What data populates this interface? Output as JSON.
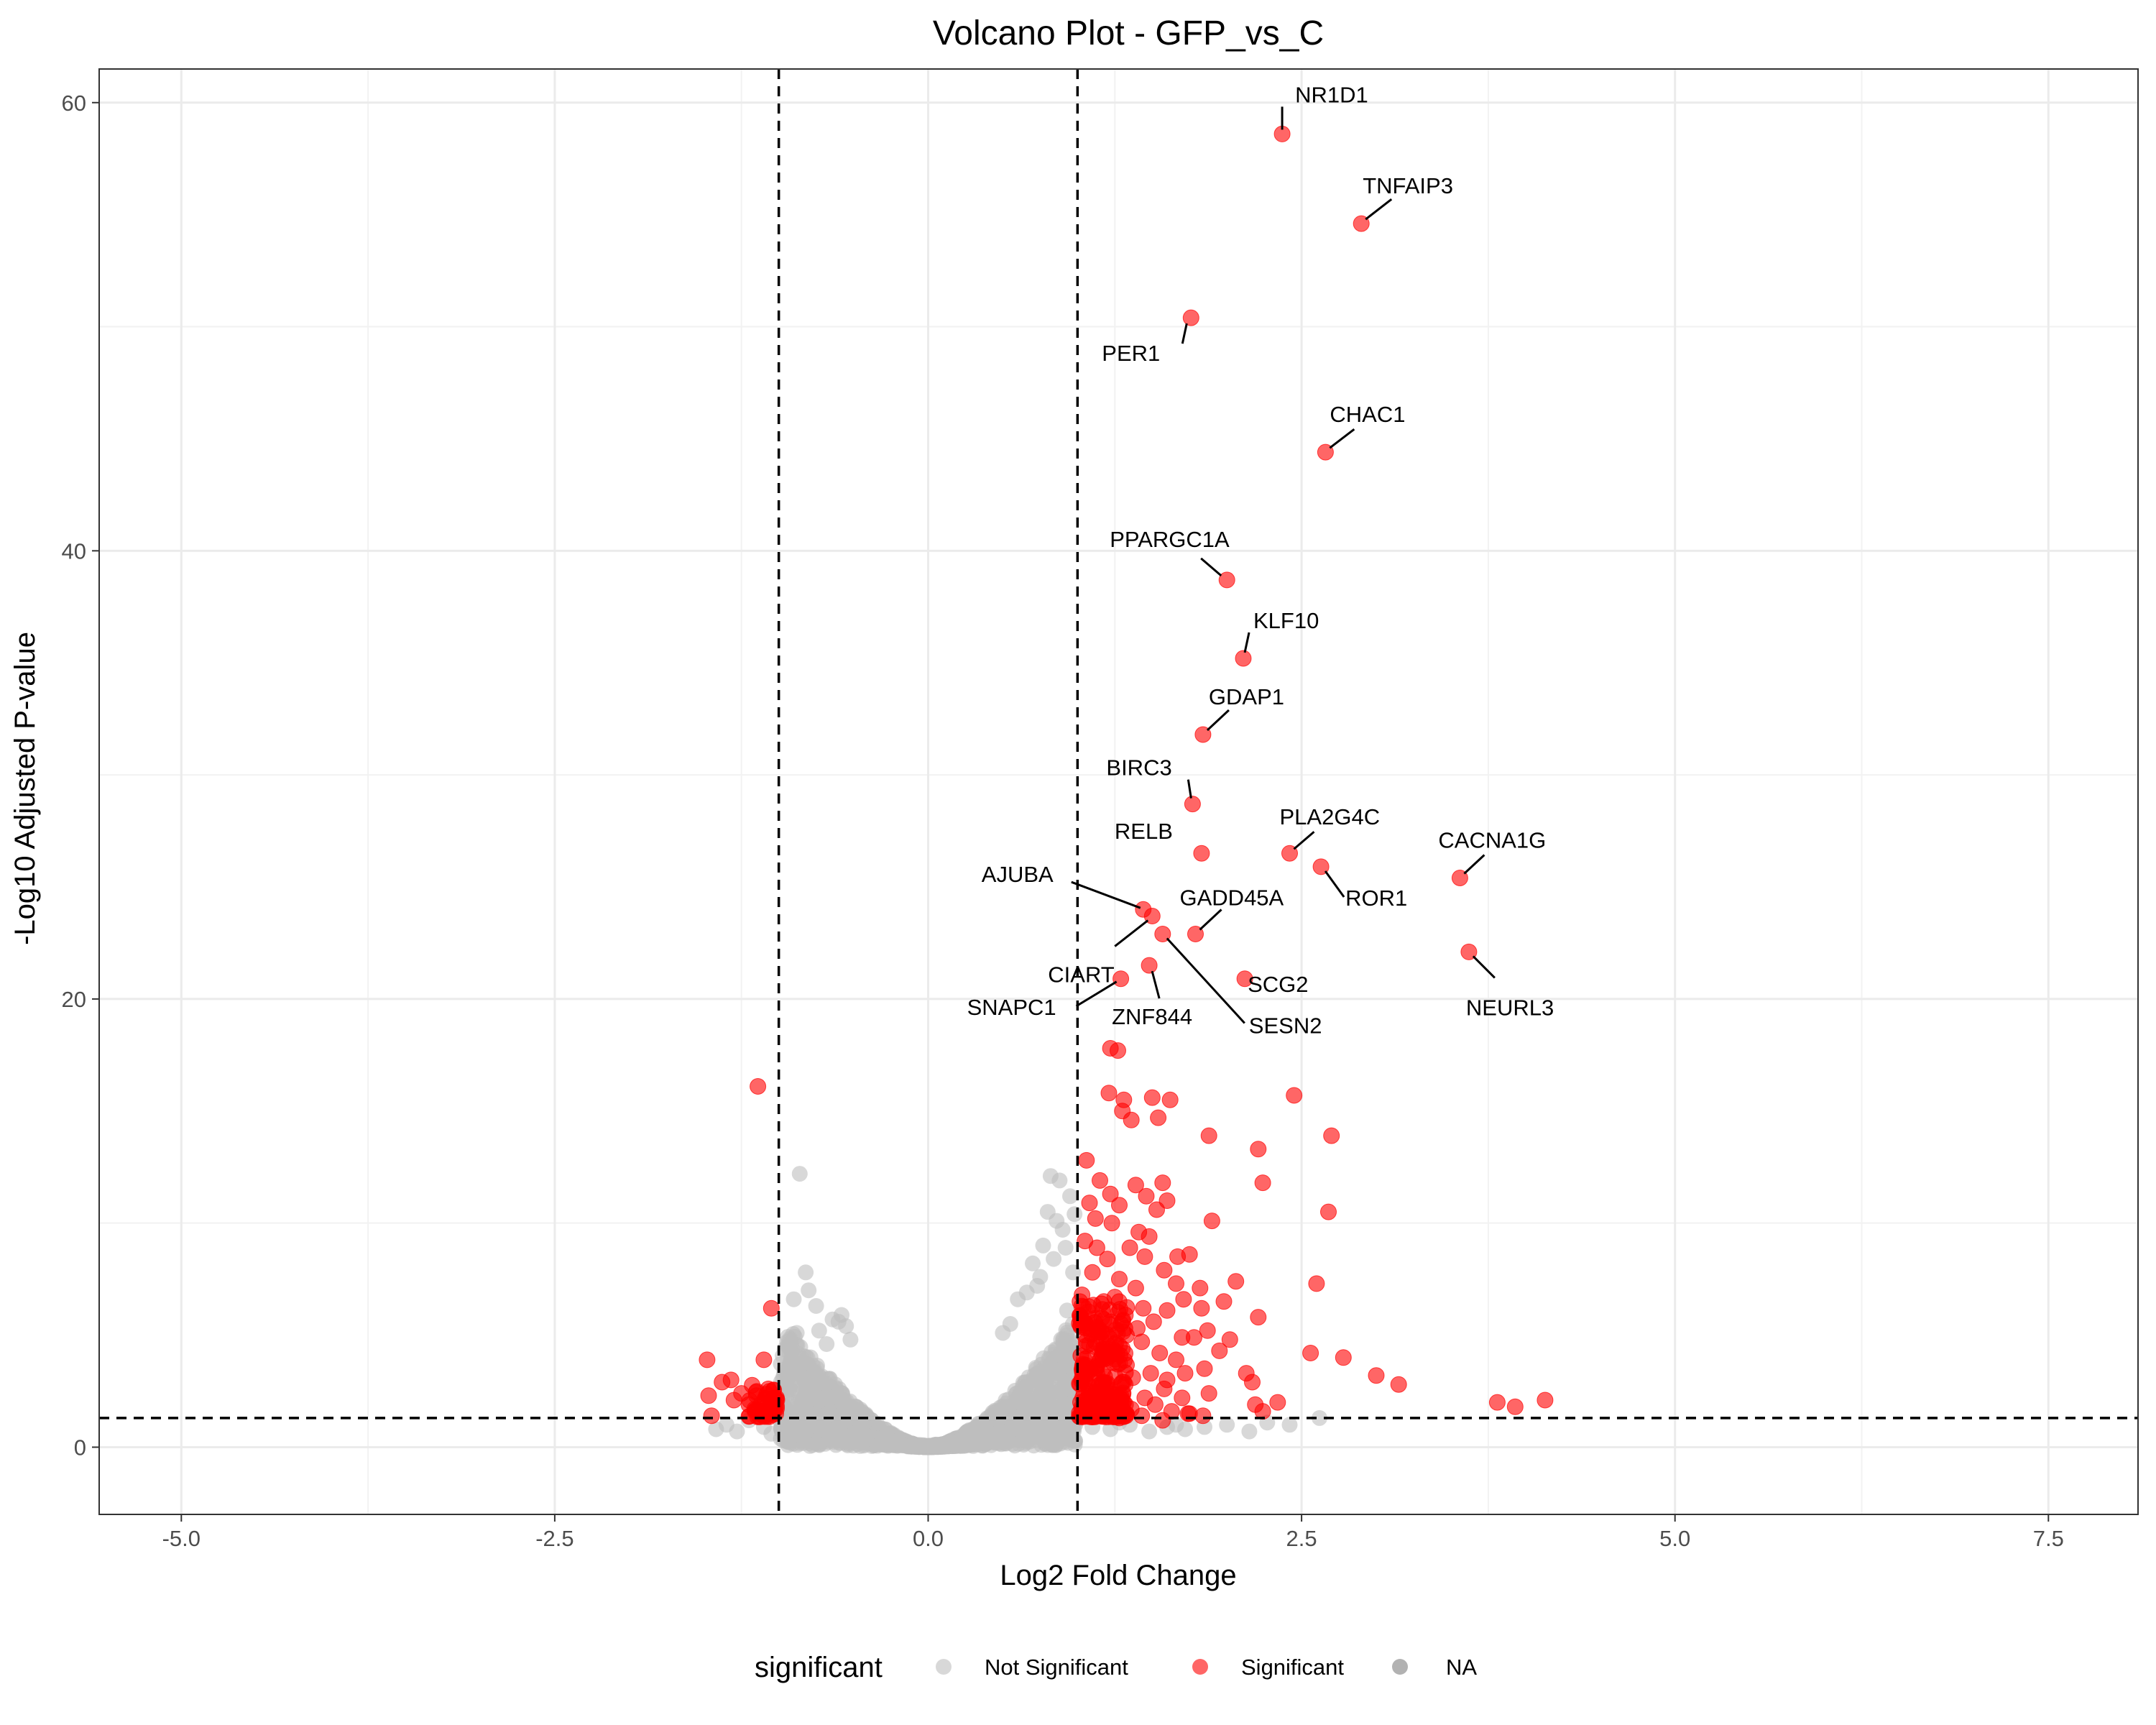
{
  "chart_data": {
    "type": "scatter",
    "title": "Volcano Plot - GFP_vs_C",
    "xlabel": "Log2 Fold Change",
    "ylabel": "-Log10 Adjusted P-value",
    "xlim": [
      -5.55,
      8.1
    ],
    "ylim": [
      -3,
      61.5
    ],
    "x_ticks": [
      -5.0,
      -2.5,
      0.0,
      2.5,
      5.0,
      7.5
    ],
    "x_tick_labels": [
      "-5.0",
      "-2.5",
      "0.0",
      "2.5",
      "5.0",
      "7.5"
    ],
    "y_ticks": [
      0,
      20,
      40,
      60
    ],
    "y_tick_labels": [
      "0",
      "20",
      "40",
      "60"
    ],
    "grid": true,
    "thresholds": {
      "log2fc": [
        -1,
        1
      ],
      "neg_log10_padj": 1.3
    },
    "legend": {
      "title": "significant",
      "position": "bottom",
      "entries": [
        {
          "label": "Not Significant",
          "color": "#bebebe"
        },
        {
          "label": "Significant",
          "color": "#ff0000"
        },
        {
          "label": "NA",
          "color": "#7f7f7f"
        }
      ]
    },
    "colors": {
      "not_significant": "#bebebe",
      "significant": "#ff0000",
      "na": "#7f7f7f"
    },
    "labeled_points": [
      {
        "gene": "NR1D1",
        "x": 2.37,
        "y": 58.6
      },
      {
        "gene": "TNFAIP3",
        "x": 2.9,
        "y": 54.6
      },
      {
        "gene": "PER1",
        "x": 1.76,
        "y": 50.4
      },
      {
        "gene": "CHAC1",
        "x": 2.66,
        "y": 44.4
      },
      {
        "gene": "PPARGC1A",
        "x": 2.0,
        "y": 38.7
      },
      {
        "gene": "KLF10",
        "x": 2.11,
        "y": 35.2
      },
      {
        "gene": "GDAP1",
        "x": 1.84,
        "y": 31.8
      },
      {
        "gene": "BIRC3",
        "x": 1.77,
        "y": 28.7
      },
      {
        "gene": "RELB",
        "x": 1.83,
        "y": 26.5
      },
      {
        "gene": "PLA2G4C",
        "x": 2.42,
        "y": 26.5
      },
      {
        "gene": "CACNA1G",
        "x": 3.56,
        "y": 25.4
      },
      {
        "gene": "ROR1",
        "x": 2.63,
        "y": 25.9
      },
      {
        "gene": "AJUBA",
        "x": 1.44,
        "y": 24.0
      },
      {
        "gene": "CIART",
        "x": 1.5,
        "y": 23.7
      },
      {
        "gene": "GADD45A",
        "x": 1.79,
        "y": 22.9
      },
      {
        "gene": "SESN2",
        "x": 1.57,
        "y": 22.9
      },
      {
        "gene": "SCG2",
        "x": 2.12,
        "y": 20.9
      },
      {
        "gene": "SNAPC1",
        "x": 1.29,
        "y": 20.9
      },
      {
        "gene": "ZNF844",
        "x": 1.48,
        "y": 21.5
      },
      {
        "gene": "NEURL3",
        "x": 3.62,
        "y": 22.1
      }
    ],
    "other_significant_points": [
      [
        -1.14,
        16.1
      ],
      [
        -1.48,
        3.9
      ],
      [
        -1.47,
        2.3
      ],
      [
        -1.45,
        1.4
      ],
      [
        -1.38,
        2.9
      ],
      [
        -1.32,
        3.0
      ],
      [
        -1.3,
        2.1
      ],
      [
        -1.25,
        2.4
      ],
      [
        -1.2,
        1.9
      ],
      [
        -1.16,
        1.6
      ],
      [
        -1.12,
        1.9
      ],
      [
        -1.1,
        3.9
      ],
      [
        -1.07,
        2.6
      ],
      [
        -1.05,
        6.2
      ],
      [
        -1.03,
        2.2
      ],
      [
        -1.02,
        1.5
      ],
      [
        1.22,
        17.8
      ],
      [
        1.27,
        17.7
      ],
      [
        1.21,
        15.8
      ],
      [
        1.31,
        15.5
      ],
      [
        1.3,
        15.0
      ],
      [
        1.36,
        14.6
      ],
      [
        1.5,
        15.6
      ],
      [
        1.54,
        14.7
      ],
      [
        1.62,
        15.5
      ],
      [
        1.88,
        13.9
      ],
      [
        2.45,
        15.7
      ],
      [
        2.21,
        13.3
      ],
      [
        2.7,
        13.9
      ],
      [
        2.24,
        11.8
      ],
      [
        2.68,
        10.5
      ],
      [
        1.06,
        12.8
      ],
      [
        1.15,
        11.9
      ],
      [
        1.08,
        10.9
      ],
      [
        1.22,
        11.3
      ],
      [
        1.28,
        10.8
      ],
      [
        1.39,
        11.7
      ],
      [
        1.46,
        11.2
      ],
      [
        1.53,
        10.6
      ],
      [
        1.57,
        11.8
      ],
      [
        1.6,
        11.0
      ],
      [
        1.12,
        10.2
      ],
      [
        1.23,
        10.0
      ],
      [
        1.41,
        9.6
      ],
      [
        1.48,
        9.4
      ],
      [
        1.9,
        10.1
      ],
      [
        1.05,
        9.2
      ],
      [
        1.13,
        8.9
      ],
      [
        1.2,
        8.4
      ],
      [
        1.35,
        8.9
      ],
      [
        1.45,
        8.5
      ],
      [
        1.67,
        8.5
      ],
      [
        1.75,
        8.6
      ],
      [
        1.1,
        7.8
      ],
      [
        1.28,
        7.5
      ],
      [
        1.39,
        7.1
      ],
      [
        1.58,
        7.9
      ],
      [
        1.66,
        7.3
      ],
      [
        1.82,
        7.1
      ],
      [
        2.06,
        7.4
      ],
      [
        2.6,
        7.3
      ],
      [
        1.03,
        6.8
      ],
      [
        1.16,
        6.4
      ],
      [
        1.25,
        6.7
      ],
      [
        1.32,
        5.9
      ],
      [
        1.44,
        6.2
      ],
      [
        1.6,
        6.1
      ],
      [
        1.71,
        6.6
      ],
      [
        1.83,
        6.2
      ],
      [
        1.98,
        6.5
      ],
      [
        2.21,
        5.8
      ],
      [
        1.02,
        5.7
      ],
      [
        1.14,
        5.3
      ],
      [
        1.22,
        5.6
      ],
      [
        1.4,
        5.3
      ],
      [
        1.51,
        5.6
      ],
      [
        1.7,
        4.9
      ],
      [
        1.78,
        4.9
      ],
      [
        1.87,
        5.2
      ],
      [
        2.02,
        4.8
      ],
      [
        1.08,
        4.6
      ],
      [
        1.19,
        4.1
      ],
      [
        1.3,
        4.4
      ],
      [
        1.43,
        4.7
      ],
      [
        1.55,
        4.2
      ],
      [
        1.66,
        3.9
      ],
      [
        1.95,
        4.3
      ],
      [
        2.56,
        4.2
      ],
      [
        2.78,
        4.0
      ],
      [
        1.04,
        3.6
      ],
      [
        1.13,
        3.3
      ],
      [
        1.27,
        3.7
      ],
      [
        1.37,
        3.1
      ],
      [
        1.49,
        3.3
      ],
      [
        1.6,
        3.0
      ],
      [
        1.72,
        3.3
      ],
      [
        1.85,
        3.5
      ],
      [
        2.13,
        3.3
      ],
      [
        3.0,
        3.2
      ],
      [
        3.15,
        2.8
      ],
      [
        1.07,
        2.7
      ],
      [
        1.18,
        2.4
      ],
      [
        1.3,
        2.9
      ],
      [
        1.45,
        2.2
      ],
      [
        1.58,
        2.6
      ],
      [
        1.7,
        2.2
      ],
      [
        1.88,
        2.4
      ],
      [
        2.17,
        2.9
      ],
      [
        1.02,
        2.0
      ],
      [
        1.12,
        1.8
      ],
      [
        1.24,
        2.1
      ],
      [
        1.36,
        1.7
      ],
      [
        1.52,
        1.9
      ],
      [
        1.63,
        1.6
      ],
      [
        1.74,
        1.5
      ],
      [
        2.19,
        1.9
      ],
      [
        2.34,
        2.0
      ],
      [
        1.04,
        1.5
      ],
      [
        1.16,
        1.4
      ],
      [
        1.28,
        1.3
      ],
      [
        1.43,
        1.4
      ],
      [
        1.57,
        1.2
      ],
      [
        1.75,
        1.5
      ],
      [
        1.84,
        1.4
      ],
      [
        2.24,
        1.6
      ],
      [
        3.81,
        2.0
      ],
      [
        3.93,
        1.8
      ],
      [
        4.13,
        2.1
      ]
    ]
  },
  "legend_ui": {
    "title": "significant"
  }
}
